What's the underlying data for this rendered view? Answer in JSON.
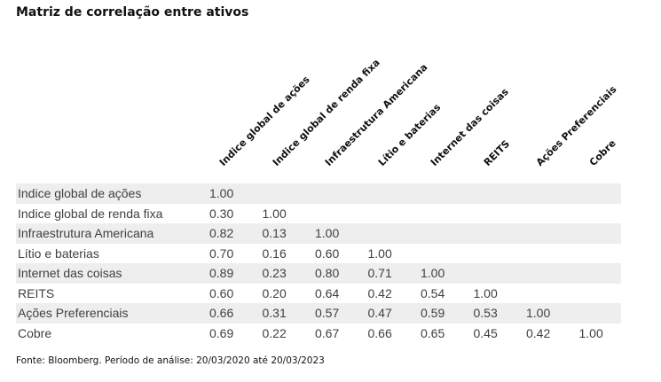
{
  "chart_data": {
    "type": "table",
    "title": "Matriz de correlação entre ativos",
    "columns": [
      "Indice global de ações",
      "Indice global de renda fixa",
      "Infraestrutura Americana",
      "Lítio e baterias",
      "Internet das coisas",
      "REITS",
      "Ações Preferenciais",
      "Cobre"
    ],
    "rows": [
      {
        "label": "Indice global de ações",
        "values": [
          "1.00",
          "",
          "",
          "",
          "",
          "",
          "",
          ""
        ]
      },
      {
        "label": "Indice global de renda fixa",
        "values": [
          "0.30",
          "1.00",
          "",
          "",
          "",
          "",
          "",
          ""
        ]
      },
      {
        "label": "Infraestrutura Americana",
        "values": [
          "0.82",
          "0.13",
          "1.00",
          "",
          "",
          "",
          "",
          ""
        ]
      },
      {
        "label": "Lítio e baterias",
        "values": [
          "0.70",
          "0.16",
          "0.60",
          "1.00",
          "",
          "",
          "",
          ""
        ]
      },
      {
        "label": "Internet das coisas",
        "values": [
          "0.89",
          "0.23",
          "0.80",
          "0.71",
          "1.00",
          "",
          "",
          ""
        ]
      },
      {
        "label": "REITS",
        "values": [
          "0.60",
          "0.20",
          "0.64",
          "0.42",
          "0.54",
          "1.00",
          "",
          ""
        ]
      },
      {
        "label": "Ações Preferenciais",
        "values": [
          "0.66",
          "0.31",
          "0.57",
          "0.47",
          "0.59",
          "0.53",
          "1.00",
          ""
        ]
      },
      {
        "label": "Cobre",
        "values": [
          "0.69",
          "0.22",
          "0.67",
          "0.66",
          "0.65",
          "0.45",
          "0.42",
          "1.00"
        ]
      }
    ],
    "source": "Fonte: Bloomberg. Período de análise: 20/03/2020 até 20/03/2023"
  }
}
